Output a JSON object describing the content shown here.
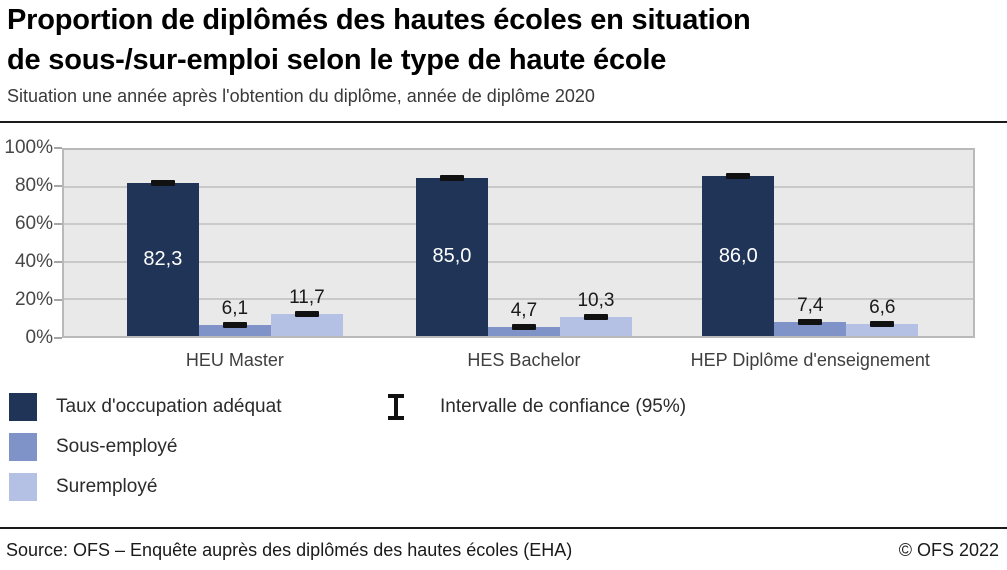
{
  "header": {
    "title": "Proportion de diplômés des hautes écoles en situation de sous-/sur-emploi selon le type de haute école",
    "title_lines": [
      "Proportion de diplômés des hautes écoles en situation",
      "de sous-/sur-emploi selon le type de haute école"
    ],
    "subtitle": "Situation une année après l'obtention du diplôme, année de diplôme 2020"
  },
  "chart_data": {
    "type": "bar",
    "categories": [
      "HEU Master",
      "HES Bachelor",
      "HEP Diplôme d'enseignement"
    ],
    "series": [
      {
        "name": "Taux d'occupation adéquat",
        "key": "taux-occupation-adequat",
        "color": "#203457",
        "values": [
          82.3,
          85.0,
          86.0
        ],
        "value_label_style": "inside-white"
      },
      {
        "name": "Sous-employé",
        "key": "sous-employe",
        "color": "#8093c9",
        "values": [
          6.1,
          4.7,
          7.4
        ],
        "value_label_style": "above"
      },
      {
        "name": "Suremployé",
        "key": "suremploye",
        "color": "#b5c1e4",
        "values": [
          11.7,
          10.3,
          6.6
        ],
        "value_label_style": "above"
      }
    ],
    "error_bar_legend": "Intervalle de confiance (95%)",
    "error_bar_color": "#111111",
    "y_axis": {
      "tick_values": [
        100,
        80,
        60,
        40,
        20,
        0
      ],
      "unit": "%",
      "min": 0,
      "max": 100,
      "grid": true
    },
    "decimal_separator": ",",
    "legend_position": "bottom-left",
    "plot_background": "#e9e9e9"
  },
  "footer": {
    "source": "Source: OFS – Enquête auprès des diplômés des hautes écoles (EHA)",
    "copyright": "© OFS 2022"
  }
}
